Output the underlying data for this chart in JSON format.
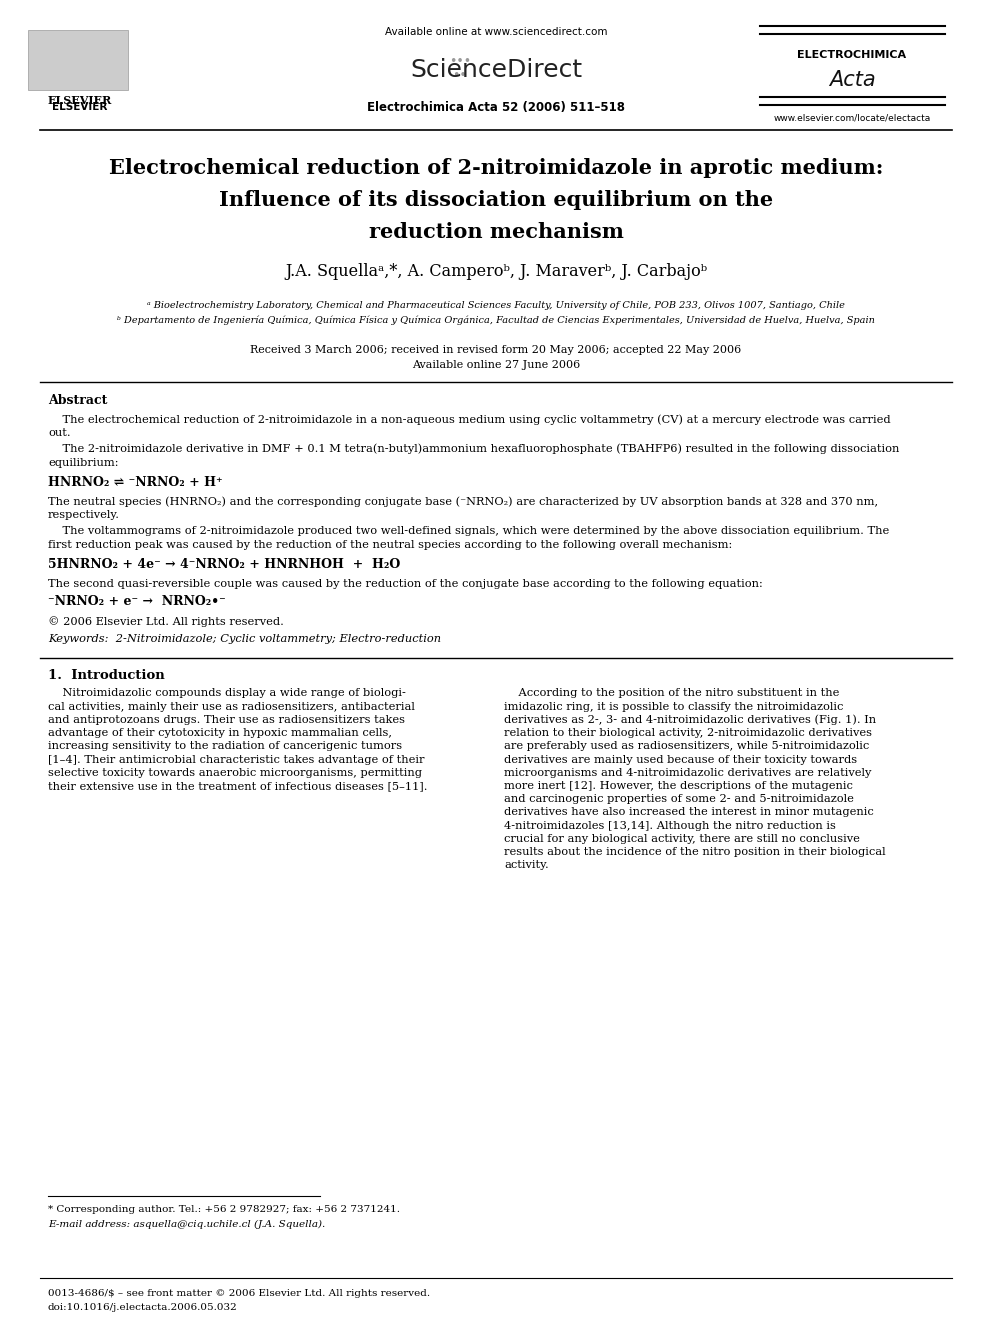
{
  "bg_color": "#ffffff",
  "figsize": [
    9.92,
    13.23
  ],
  "dpi": 100,
  "header_available": "Available online at www.sciencedirect.com",
  "header_sd": "ScienceDirect",
  "header_journal": "Electrochimica Acta 52 (2006) 511–518",
  "header_elsevier": "ELSEVIER",
  "header_ec": "ELECTROCHIMICA",
  "header_acta": "Acta",
  "header_url": "www.elsevier.com/locate/electacta",
  "title_lines": [
    "Electrochemical reduction of 2-nitroimidazole in aprotic medium:",
    "Influence of its dissociation equilibrium on the",
    "reduction mechanism"
  ],
  "authors_line": "J.A. Squellaᵃ,*, A. Camperoᵇ, J. Maraverᵇ, J. Carbajoᵇ",
  "affil_a": "ᵃ Bioelectrochemistry Laboratory, Chemical and Pharmaceutical Sciences Faculty, University of Chile, POB 233, Olivos 1007, Santiago, Chile",
  "affil_b": "ᵇ Departamento de Ingeniería Química, Química Física y Química Orgánica, Facultad de Ciencias Experimentales, Universidad de Huelva, Huelva, Spain",
  "received": "Received 3 March 2006; received in revised form 20 May 2006; accepted 22 May 2006",
  "available2": "Available online 27 June 2006",
  "abstract_title": "Abstract",
  "abstract_p1a": "    The electrochemical reduction of 2-nitroimidazole in a non-aqueous medium using cyclic voltammetry (CV) at a mercury electrode was carried",
  "abstract_p1b": "out.",
  "abstract_p2a": "    The 2-nitroimidazole derivative in DMF + 0.1 M tetra(n-butyl)ammonium hexafluorophosphate (TBAHFP6) resulted in the following dissociation",
  "abstract_p2b": "equilibrium:",
  "eq1": "HNRNO₂ ⇌ ⁻NRNO₂ + H⁺",
  "abstract_p3a": "The neutral species (HNRNO₂) and the corresponding conjugate base (⁻NRNO₂) are characterized by UV absorption bands at 328 and 370 nm,",
  "abstract_p3b": "respectively.",
  "abstract_p4a": "    The voltammograms of 2-nitroimidazole produced two well-defined signals, which were determined by the above dissociation equilibrium. The",
  "abstract_p4b": "first reduction peak was caused by the reduction of the neutral species according to the following overall mechanism:",
  "eq2": "5HNRNO₂ + 4e⁻ → 4⁻NRNO₂ + HNRNHOH  +  H₂O",
  "abstract_p5": "The second quasi-reversible couple was caused by the reduction of the conjugate base according to the following equation:",
  "eq3": "⁻NRNO₂ + e⁻ →  NRNO₂•⁻",
  "copyright": "© 2006 Elsevier Ltd. All rights reserved.",
  "keywords": "Keywords:  2-Nitroimidazole; Cyclic voltammetry; Electro-reduction",
  "section1": "1.  Introduction",
  "col1_lines": [
    "    Nitroimidazolic compounds display a wide range of biologi-",
    "cal activities, mainly their use as radiosensitizers, antibacterial",
    "and antiprotozoans drugs. Their use as radiosensitizers takes",
    "advantage of their cytotoxicity in hypoxic mammalian cells,",
    "increasing sensitivity to the radiation of cancerigenic tumors",
    "[1–4]. Their antimicrobial characteristic takes advantage of their",
    "selective toxicity towards anaerobic microorganisms, permitting",
    "their extensive use in the treatment of infectious diseases [5–11]."
  ],
  "col2_lines": [
    "    According to the position of the nitro substituent in the",
    "imidazolic ring, it is possible to classify the nitroimidazolic",
    "derivatives as 2-, 3- and 4-nitroimidazolic derivatives (Fig. 1). In",
    "relation to their biological activity, 2-nitroimidazolic derivatives",
    "are preferably used as radiosensitizers, while 5-nitroimidazolic",
    "derivatives are mainly used because of their toxicity towards",
    "microorganisms and 4-nitroimidazolic derivatives are relatively",
    "more inert [12]. However, the descriptions of the mutagenic",
    "and carcinogenic properties of some 2- and 5-nitroimidazole",
    "derivatives have also increased the interest in minor mutagenic",
    "4-nitroimidazoles [13,14]. Although the nitro reduction is",
    "crucial for any biological activity, there are still no conclusive",
    "results about the incidence of the nitro position in their biological",
    "activity."
  ],
  "footnote_line": "* Corresponding author. Tel.: +56 2 9782927; fax: +56 2 7371241.",
  "footnote_email": "E-mail address: asquella@ciq.uchile.cl (J.A. Squella).",
  "footer_issn": "0013-4686/$ – see front matter © 2006 Elsevier Ltd. All rights reserved.",
  "footer_doi": "doi:10.1016/j.electacta.2006.05.032"
}
